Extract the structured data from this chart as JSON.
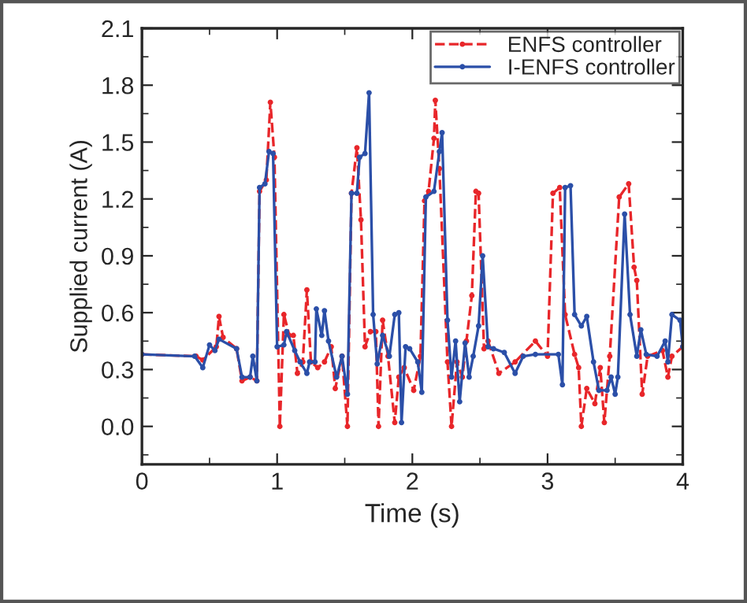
{
  "chart_data": {
    "type": "line",
    "xlabel": "Time (s)",
    "ylabel": "Supplied current (A)",
    "xlim": [
      0,
      4
    ],
    "xticks": [
      0,
      1,
      2,
      3,
      4
    ],
    "ylim": [
      -0.2,
      2.1
    ],
    "yticks": [
      {
        "value": 0,
        "label": "0.0"
      },
      {
        "value": 0.3,
        "label": "0.3"
      },
      {
        "value": 0.6,
        "label": "0.6"
      },
      {
        "value": 0.9,
        "label": "0.9"
      },
      {
        "value": 1.2,
        "label": "1.2"
      },
      {
        "value": 1.5,
        "label": "1.5"
      },
      {
        "value": 1.8,
        "label": "1.8"
      },
      {
        "value": 2.1,
        "label": "2.1"
      }
    ],
    "legend": "top right",
    "marker": "circle",
    "grid": false,
    "series": [
      {
        "name": "ENFS controller",
        "color": "#e8262a",
        "line_style": "dashed",
        "x": [
          0,
          0.4,
          0.45,
          0.55,
          0.57,
          0.6,
          0.7,
          0.74,
          0.8,
          0.85,
          0.87,
          0.92,
          0.95,
          0.98,
          1.02,
          1.05,
          1.09,
          1.12,
          1.15,
          1.19,
          1.22,
          1.25,
          1.3,
          1.35,
          1.4,
          1.43,
          1.48,
          1.52,
          1.55,
          1.59,
          1.62,
          1.65,
          1.69,
          1.73,
          1.75,
          1.78,
          1.82,
          1.87,
          1.9,
          1.94,
          2.01,
          2.06,
          2.09,
          2.12,
          2.16,
          2.17,
          2.2,
          2.26,
          2.29,
          2.33,
          2.37,
          2.4,
          2.44,
          2.47,
          2.49,
          2.53,
          2.56,
          2.64,
          2.76,
          2.91,
          3.0,
          3.04,
          3.09,
          3.13,
          3.2,
          3.23,
          3.25,
          3.29,
          3.35,
          3.39,
          3.42,
          3.46,
          3.53,
          3.6,
          3.64,
          3.66,
          3.7,
          3.74,
          3.85,
          3.89,
          3.92,
          4.0
        ],
        "values": [
          0.38,
          0.37,
          0.35,
          0.42,
          0.58,
          0.47,
          0.41,
          0.24,
          0.26,
          0.24,
          1.24,
          1.3,
          1.71,
          1.42,
          0.0,
          0.59,
          0.48,
          0.48,
          0.28,
          0.34,
          0.72,
          0.34,
          0.31,
          0.34,
          0.42,
          0.2,
          0.37,
          0.0,
          1.23,
          1.47,
          1.09,
          0.42,
          0.5,
          0.5,
          0.0,
          0.56,
          0.37,
          0.02,
          0.26,
          0.31,
          0.19,
          0.37,
          1.19,
          1.24,
          1.52,
          1.72,
          1.36,
          0.34,
          0.0,
          0.34,
          0.26,
          0.45,
          0.69,
          1.24,
          1.23,
          0.41,
          0.45,
          0.28,
          0.34,
          0.45,
          0.37,
          1.23,
          1.26,
          0.59,
          0.38,
          0.31,
          0.0,
          0.2,
          0.12,
          0.31,
          0.02,
          0.37,
          1.21,
          1.28,
          0.84,
          0.77,
          0.17,
          0.37,
          0.4,
          0.26,
          0.37,
          0.42
        ]
      },
      {
        "name": "I-ENFS controller",
        "color": "#2b4fa8",
        "line_style": "solid",
        "x": [
          0,
          0.39,
          0.45,
          0.5,
          0.54,
          0.57,
          0.7,
          0.74,
          0.8,
          0.82,
          0.85,
          0.87,
          0.91,
          0.94,
          0.97,
          1.0,
          1.05,
          1.07,
          1.13,
          1.17,
          1.22,
          1.24,
          1.28,
          1.29,
          1.33,
          1.35,
          1.38,
          1.44,
          1.48,
          1.52,
          1.55,
          1.59,
          1.61,
          1.65,
          1.68,
          1.71,
          1.74,
          1.78,
          1.83,
          1.87,
          1.9,
          1.92,
          1.95,
          1.98,
          2.04,
          2.07,
          2.1,
          2.16,
          2.2,
          2.22,
          2.26,
          2.29,
          2.32,
          2.35,
          2.39,
          2.42,
          2.45,
          2.49,
          2.52,
          2.56,
          2.6,
          2.68,
          2.76,
          2.82,
          2.91,
          3.08,
          3.11,
          3.13,
          3.17,
          3.2,
          3.25,
          3.29,
          3.34,
          3.38,
          3.44,
          3.47,
          3.5,
          3.52,
          3.57,
          3.61,
          3.66,
          3.69,
          3.73,
          3.81,
          3.87,
          3.89,
          3.92,
          3.98,
          4.0
        ],
        "values": [
          0.38,
          0.37,
          0.31,
          0.43,
          0.4,
          0.46,
          0.41,
          0.26,
          0.26,
          0.37,
          0.24,
          1.26,
          1.28,
          1.45,
          1.44,
          0.42,
          0.43,
          0.5,
          0.4,
          0.34,
          0.28,
          0.34,
          0.34,
          0.62,
          0.48,
          0.61,
          0.45,
          0.26,
          0.37,
          0.17,
          1.23,
          1.23,
          1.42,
          1.44,
          1.76,
          0.59,
          0.33,
          0.48,
          0.37,
          0.59,
          0.6,
          0.02,
          0.42,
          0.41,
          0.34,
          0.18,
          1.21,
          1.24,
          1.45,
          1.55,
          0.56,
          0.26,
          0.45,
          0.13,
          0.44,
          0.26,
          0.37,
          0.53,
          0.9,
          0.42,
          0.41,
          0.39,
          0.28,
          0.37,
          0.38,
          0.38,
          0.22,
          1.26,
          1.27,
          0.59,
          0.53,
          0.58,
          0.34,
          0.19,
          0.19,
          0.26,
          0.17,
          0.26,
          1.12,
          0.59,
          0.37,
          0.51,
          0.38,
          0.37,
          0.45,
          0.34,
          0.59,
          0.56,
          0.42
        ]
      }
    ]
  }
}
